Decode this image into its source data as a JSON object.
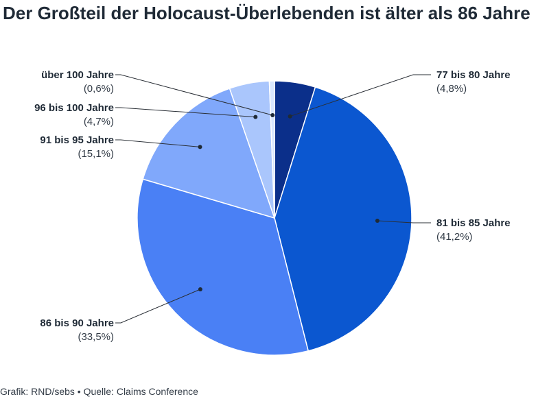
{
  "title": "Der Großteil der Holocaust-Überlebenden ist älter als 86 Jahre",
  "footer": "Grafik: RND/sebs • Quelle: Claims Conference",
  "chart_data": {
    "type": "pie",
    "title": "Der Großteil der Holocaust-Überlebenden ist älter als 86 Jahre",
    "slices": [
      {
        "label": "77 bis 80 Jahre",
        "value": 4.8,
        "value_label": "(4,8%)",
        "color": "#0b2f8a"
      },
      {
        "label": "81 bis 85 Jahre",
        "value": 41.2,
        "value_label": "(41,2%)",
        "color": "#0b57d0"
      },
      {
        "label": "86 bis 90 Jahre",
        "value": 33.5,
        "value_label": "(33,5%)",
        "color": "#4a80f5"
      },
      {
        "label": "91 bis 95 Jahre",
        "value": 15.1,
        "value_label": "(15,1%)",
        "color": "#80a8fb"
      },
      {
        "label": "96 bis 100 Jahre",
        "value": 4.7,
        "value_label": "(4,7%)",
        "color": "#aac6fc"
      },
      {
        "label": "über 100 Jahre",
        "value": 0.6,
        "value_label": "(0,6%)",
        "color": "#d9e7fe"
      }
    ]
  }
}
